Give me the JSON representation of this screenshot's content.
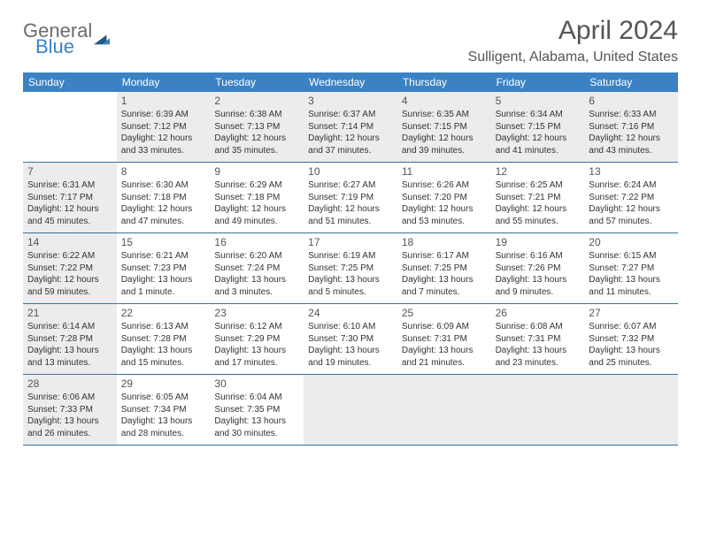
{
  "brand": {
    "part1": "General",
    "part2": "Blue"
  },
  "title": "April 2024",
  "location": "Sulligent, Alabama, United States",
  "weekdays": [
    "Sunday",
    "Monday",
    "Tuesday",
    "Wednesday",
    "Thursday",
    "Friday",
    "Saturday"
  ],
  "colors": {
    "header_bg": "#3b82c4",
    "shaded_bg": "#ececec",
    "row_border": "#3b6fa0",
    "text": "#333333",
    "title_text": "#555555"
  },
  "weeks": [
    [
      {
        "day": "",
        "shaded": false,
        "lines": []
      },
      {
        "day": "1",
        "shaded": true,
        "lines": [
          "Sunrise: 6:39 AM",
          "Sunset: 7:12 PM",
          "Daylight: 12 hours",
          "and 33 minutes."
        ]
      },
      {
        "day": "2",
        "shaded": true,
        "lines": [
          "Sunrise: 6:38 AM",
          "Sunset: 7:13 PM",
          "Daylight: 12 hours",
          "and 35 minutes."
        ]
      },
      {
        "day": "3",
        "shaded": true,
        "lines": [
          "Sunrise: 6:37 AM",
          "Sunset: 7:14 PM",
          "Daylight: 12 hours",
          "and 37 minutes."
        ]
      },
      {
        "day": "4",
        "shaded": true,
        "lines": [
          "Sunrise: 6:35 AM",
          "Sunset: 7:15 PM",
          "Daylight: 12 hours",
          "and 39 minutes."
        ]
      },
      {
        "day": "5",
        "shaded": true,
        "lines": [
          "Sunrise: 6:34 AM",
          "Sunset: 7:15 PM",
          "Daylight: 12 hours",
          "and 41 minutes."
        ]
      },
      {
        "day": "6",
        "shaded": true,
        "lines": [
          "Sunrise: 6:33 AM",
          "Sunset: 7:16 PM",
          "Daylight: 12 hours",
          "and 43 minutes."
        ]
      }
    ],
    [
      {
        "day": "7",
        "shaded": true,
        "lines": [
          "Sunrise: 6:31 AM",
          "Sunset: 7:17 PM",
          "Daylight: 12 hours",
          "and 45 minutes."
        ]
      },
      {
        "day": "8",
        "shaded": false,
        "lines": [
          "Sunrise: 6:30 AM",
          "Sunset: 7:18 PM",
          "Daylight: 12 hours",
          "and 47 minutes."
        ]
      },
      {
        "day": "9",
        "shaded": false,
        "lines": [
          "Sunrise: 6:29 AM",
          "Sunset: 7:18 PM",
          "Daylight: 12 hours",
          "and 49 minutes."
        ]
      },
      {
        "day": "10",
        "shaded": false,
        "lines": [
          "Sunrise: 6:27 AM",
          "Sunset: 7:19 PM",
          "Daylight: 12 hours",
          "and 51 minutes."
        ]
      },
      {
        "day": "11",
        "shaded": false,
        "lines": [
          "Sunrise: 6:26 AM",
          "Sunset: 7:20 PM",
          "Daylight: 12 hours",
          "and 53 minutes."
        ]
      },
      {
        "day": "12",
        "shaded": false,
        "lines": [
          "Sunrise: 6:25 AM",
          "Sunset: 7:21 PM",
          "Daylight: 12 hours",
          "and 55 minutes."
        ]
      },
      {
        "day": "13",
        "shaded": false,
        "lines": [
          "Sunrise: 6:24 AM",
          "Sunset: 7:22 PM",
          "Daylight: 12 hours",
          "and 57 minutes."
        ]
      }
    ],
    [
      {
        "day": "14",
        "shaded": true,
        "lines": [
          "Sunrise: 6:22 AM",
          "Sunset: 7:22 PM",
          "Daylight: 12 hours",
          "and 59 minutes."
        ]
      },
      {
        "day": "15",
        "shaded": false,
        "lines": [
          "Sunrise: 6:21 AM",
          "Sunset: 7:23 PM",
          "Daylight: 13 hours",
          "and 1 minute."
        ]
      },
      {
        "day": "16",
        "shaded": false,
        "lines": [
          "Sunrise: 6:20 AM",
          "Sunset: 7:24 PM",
          "Daylight: 13 hours",
          "and 3 minutes."
        ]
      },
      {
        "day": "17",
        "shaded": false,
        "lines": [
          "Sunrise: 6:19 AM",
          "Sunset: 7:25 PM",
          "Daylight: 13 hours",
          "and 5 minutes."
        ]
      },
      {
        "day": "18",
        "shaded": false,
        "lines": [
          "Sunrise: 6:17 AM",
          "Sunset: 7:25 PM",
          "Daylight: 13 hours",
          "and 7 minutes."
        ]
      },
      {
        "day": "19",
        "shaded": false,
        "lines": [
          "Sunrise: 6:16 AM",
          "Sunset: 7:26 PM",
          "Daylight: 13 hours",
          "and 9 minutes."
        ]
      },
      {
        "day": "20",
        "shaded": false,
        "lines": [
          "Sunrise: 6:15 AM",
          "Sunset: 7:27 PM",
          "Daylight: 13 hours",
          "and 11 minutes."
        ]
      }
    ],
    [
      {
        "day": "21",
        "shaded": true,
        "lines": [
          "Sunrise: 6:14 AM",
          "Sunset: 7:28 PM",
          "Daylight: 13 hours",
          "and 13 minutes."
        ]
      },
      {
        "day": "22",
        "shaded": false,
        "lines": [
          "Sunrise: 6:13 AM",
          "Sunset: 7:28 PM",
          "Daylight: 13 hours",
          "and 15 minutes."
        ]
      },
      {
        "day": "23",
        "shaded": false,
        "lines": [
          "Sunrise: 6:12 AM",
          "Sunset: 7:29 PM",
          "Daylight: 13 hours",
          "and 17 minutes."
        ]
      },
      {
        "day": "24",
        "shaded": false,
        "lines": [
          "Sunrise: 6:10 AM",
          "Sunset: 7:30 PM",
          "Daylight: 13 hours",
          "and 19 minutes."
        ]
      },
      {
        "day": "25",
        "shaded": false,
        "lines": [
          "Sunrise: 6:09 AM",
          "Sunset: 7:31 PM",
          "Daylight: 13 hours",
          "and 21 minutes."
        ]
      },
      {
        "day": "26",
        "shaded": false,
        "lines": [
          "Sunrise: 6:08 AM",
          "Sunset: 7:31 PM",
          "Daylight: 13 hours",
          "and 23 minutes."
        ]
      },
      {
        "day": "27",
        "shaded": false,
        "lines": [
          "Sunrise: 6:07 AM",
          "Sunset: 7:32 PM",
          "Daylight: 13 hours",
          "and 25 minutes."
        ]
      }
    ],
    [
      {
        "day": "28",
        "shaded": true,
        "lines": [
          "Sunrise: 6:06 AM",
          "Sunset: 7:33 PM",
          "Daylight: 13 hours",
          "and 26 minutes."
        ]
      },
      {
        "day": "29",
        "shaded": false,
        "lines": [
          "Sunrise: 6:05 AM",
          "Sunset: 7:34 PM",
          "Daylight: 13 hours",
          "and 28 minutes."
        ]
      },
      {
        "day": "30",
        "shaded": false,
        "lines": [
          "Sunrise: 6:04 AM",
          "Sunset: 7:35 PM",
          "Daylight: 13 hours",
          "and 30 minutes."
        ]
      },
      {
        "day": "",
        "shaded": true,
        "lines": []
      },
      {
        "day": "",
        "shaded": true,
        "lines": []
      },
      {
        "day": "",
        "shaded": true,
        "lines": []
      },
      {
        "day": "",
        "shaded": true,
        "lines": []
      }
    ]
  ]
}
